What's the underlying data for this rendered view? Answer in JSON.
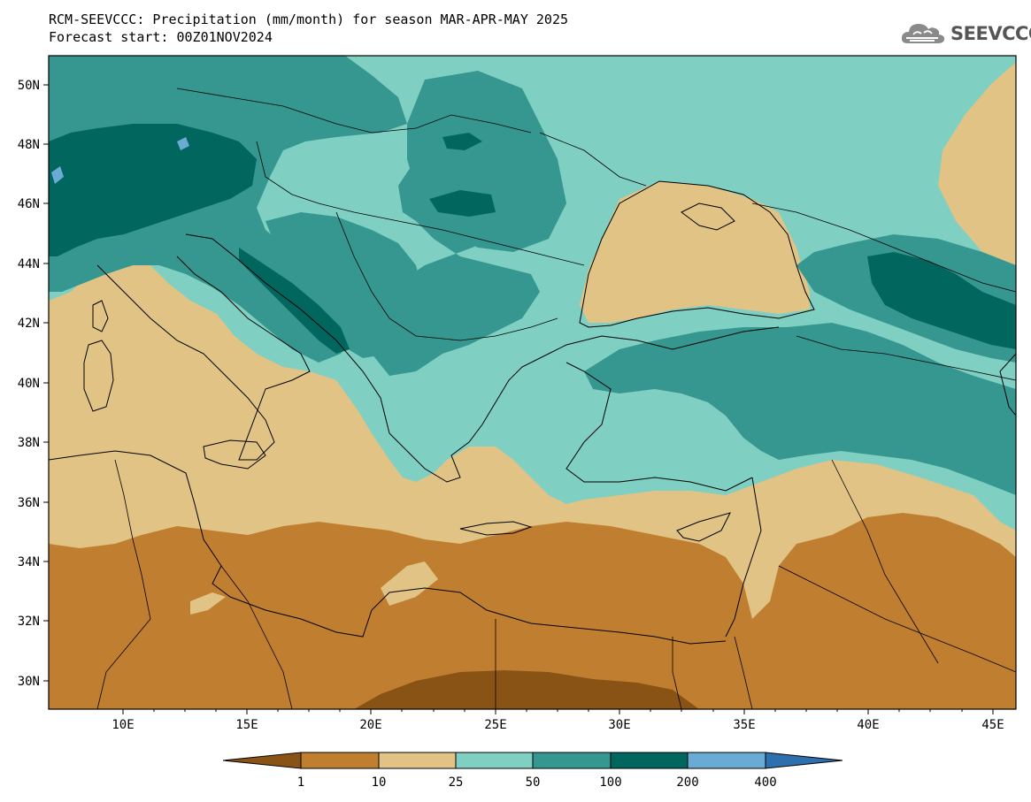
{
  "title_line1": "RCM-SEEVCCC: Precipitation (mm/month) for season MAR-APR-MAY 2025",
  "title_line2": "Forecast start: 00Z01NOV2024",
  "logo_text": "SEEVCCC",
  "logo_icon": "cloud-icon",
  "axes": {
    "lon_range": [
      7,
      46
    ],
    "lat_range": [
      29,
      51
    ],
    "lon_ticks": [
      "10E",
      "15E",
      "20E",
      "25E",
      "30E",
      "35E",
      "40E",
      "45E"
    ],
    "lat_ticks": [
      "30N",
      "32N",
      "34N",
      "36N",
      "38N",
      "40N",
      "42N",
      "44N",
      "46N",
      "48N",
      "50N"
    ]
  },
  "colorbar": {
    "labels": [
      "1",
      "10",
      "25",
      "50",
      "100",
      "200",
      "400"
    ],
    "colors": [
      "#8a5316",
      "#c07f30",
      "#e0c385",
      "#7fcfc2",
      "#35978f",
      "#01665e",
      "#6aabd6",
      "#2e6fad"
    ]
  }
}
